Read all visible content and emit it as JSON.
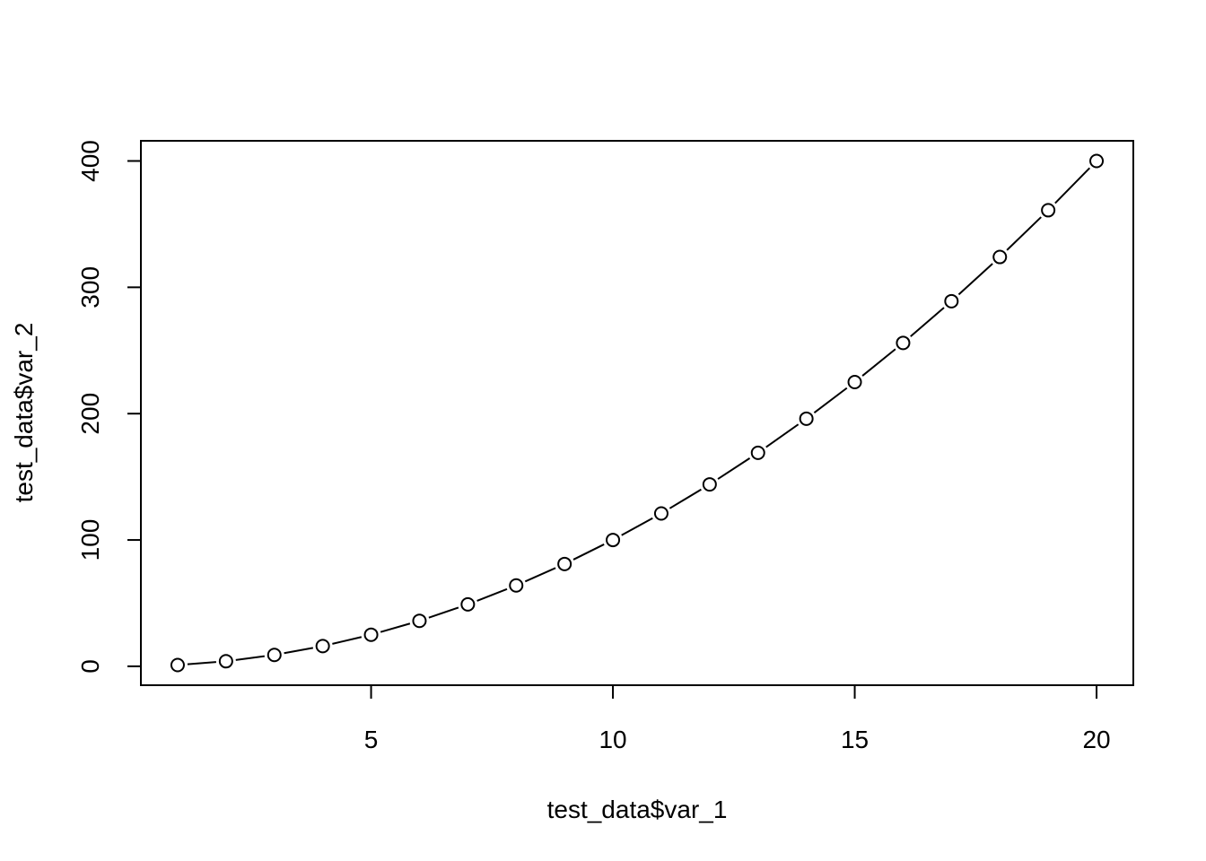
{
  "chart_data": {
    "type": "line",
    "x_label": "test_data$var_1",
    "y_label": "test_data$var_2",
    "x": [
      1,
      2,
      3,
      4,
      5,
      6,
      7,
      8,
      9,
      10,
      11,
      12,
      13,
      14,
      15,
      16,
      17,
      18,
      19,
      20
    ],
    "series": [
      {
        "color": "#000000",
        "values": [
          1,
          4,
          9,
          16,
          25,
          36,
          49,
          64,
          81,
          100,
          121,
          144,
          169,
          196,
          225,
          256,
          289,
          324,
          361,
          400
        ]
      }
    ],
    "xlim": [
      0.24,
      20.76
    ],
    "ylim": [
      -14.96,
      415.96
    ],
    "xticks": [
      5,
      10,
      15,
      20
    ],
    "yticks": [
      0,
      100,
      200,
      300,
      400
    ],
    "markers": "open-circle",
    "grid": false
  }
}
